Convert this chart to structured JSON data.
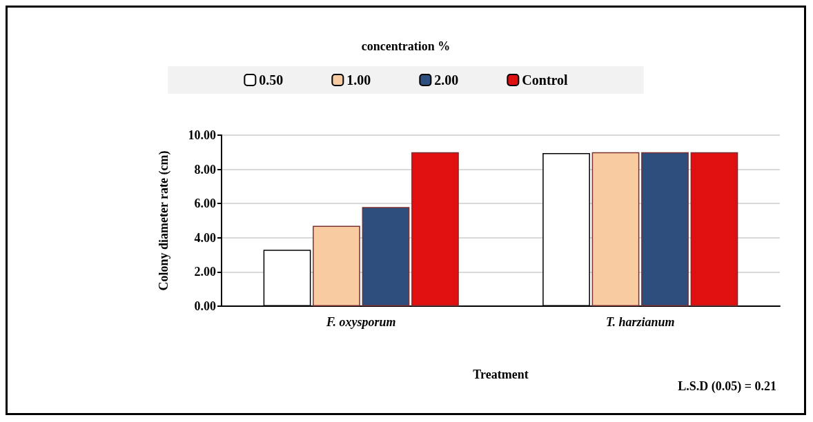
{
  "chart_data": {
    "type": "bar",
    "legend_title": "concentration %",
    "xlabel": "Treatment",
    "ylabel": "Colony diameter rate (cm)",
    "annotations": [
      "L.S.D (0.05) = 0.21"
    ],
    "categories": [
      "F. oxysporum",
      "T. harzianum"
    ],
    "series": [
      {
        "name": "0.50",
        "color": "#ffffff",
        "values": [
          3.3,
          8.95
        ]
      },
      {
        "name": "1.00",
        "color": "#f8cba0",
        "values": [
          4.7,
          9.0
        ]
      },
      {
        "name": "2.00",
        "color": "#2e4e7e",
        "values": [
          5.8,
          9.0
        ]
      },
      {
        "name": "Control",
        "color": "#e01010",
        "values": [
          9.0,
          9.0
        ]
      }
    ],
    "ylim": [
      0,
      10
    ],
    "yticks": [
      {
        "value": 0,
        "label": "0.00"
      },
      {
        "value": 2,
        "label": "2.00"
      },
      {
        "value": 4,
        "label": "4.00"
      },
      {
        "value": 6,
        "label": "6.00"
      },
      {
        "value": 8,
        "label": "8.00"
      },
      {
        "value": 10,
        "label": "10.00"
      }
    ],
    "grid": "y",
    "legend": "top"
  }
}
